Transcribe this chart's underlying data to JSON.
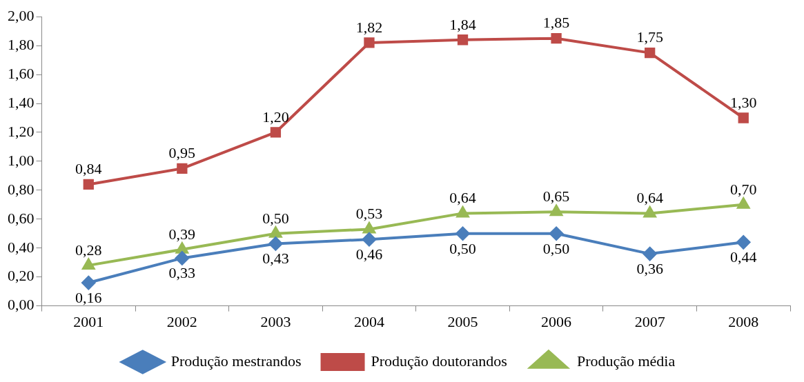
{
  "chart_data": {
    "type": "line",
    "categories": [
      "2001",
      "2002",
      "2003",
      "2004",
      "2005",
      "2006",
      "2007",
      "2008"
    ],
    "series": [
      {
        "name": "Produção mestrandos",
        "color": "#4a7ebb",
        "marker": "diamond",
        "values": [
          0.16,
          0.33,
          0.43,
          0.46,
          0.5,
          0.5,
          0.36,
          0.44
        ],
        "value_labels": [
          "0,16",
          "0,33",
          "0,43",
          "0,46",
          "0,50",
          "0,50",
          "0,36",
          "0,44"
        ]
      },
      {
        "name": "Produção doutorandos",
        "color": "#be4b48",
        "marker": "square",
        "values": [
          0.84,
          0.95,
          1.2,
          1.82,
          1.84,
          1.85,
          1.75,
          1.3
        ],
        "value_labels": [
          "0,84",
          "0,95",
          "1,20",
          "1,82",
          "1,84",
          "1,85",
          "1,75",
          "1,30"
        ]
      },
      {
        "name": "Produção média",
        "color": "#98b954",
        "marker": "triangle",
        "values": [
          0.28,
          0.39,
          0.5,
          0.53,
          0.64,
          0.65,
          0.64,
          0.7
        ],
        "value_labels": [
          "0,28",
          "0,39",
          "0,50",
          "0,53",
          "0,64",
          "0,65",
          "0,64",
          "0,70"
        ]
      }
    ],
    "ylim": [
      0,
      2
    ],
    "yticks": [
      {
        "value": 0,
        "label": "0,00"
      },
      {
        "value": 0.2,
        "label": "0,20"
      },
      {
        "value": 0.4,
        "label": "0,40"
      },
      {
        "value": 0.6,
        "label": "0,60"
      },
      {
        "value": 0.8,
        "label": "0,80"
      },
      {
        "value": 1,
        "label": "1,00"
      },
      {
        "value": 1.2,
        "label": "1,20"
      },
      {
        "value": 1.4,
        "label": "1,40"
      },
      {
        "value": 1.6,
        "label": "1,60"
      },
      {
        "value": 1.8,
        "label": "1,80"
      },
      {
        "value": 2,
        "label": "2,00"
      }
    ],
    "grid": false,
    "legend": "bottom",
    "line_style": "solid"
  }
}
